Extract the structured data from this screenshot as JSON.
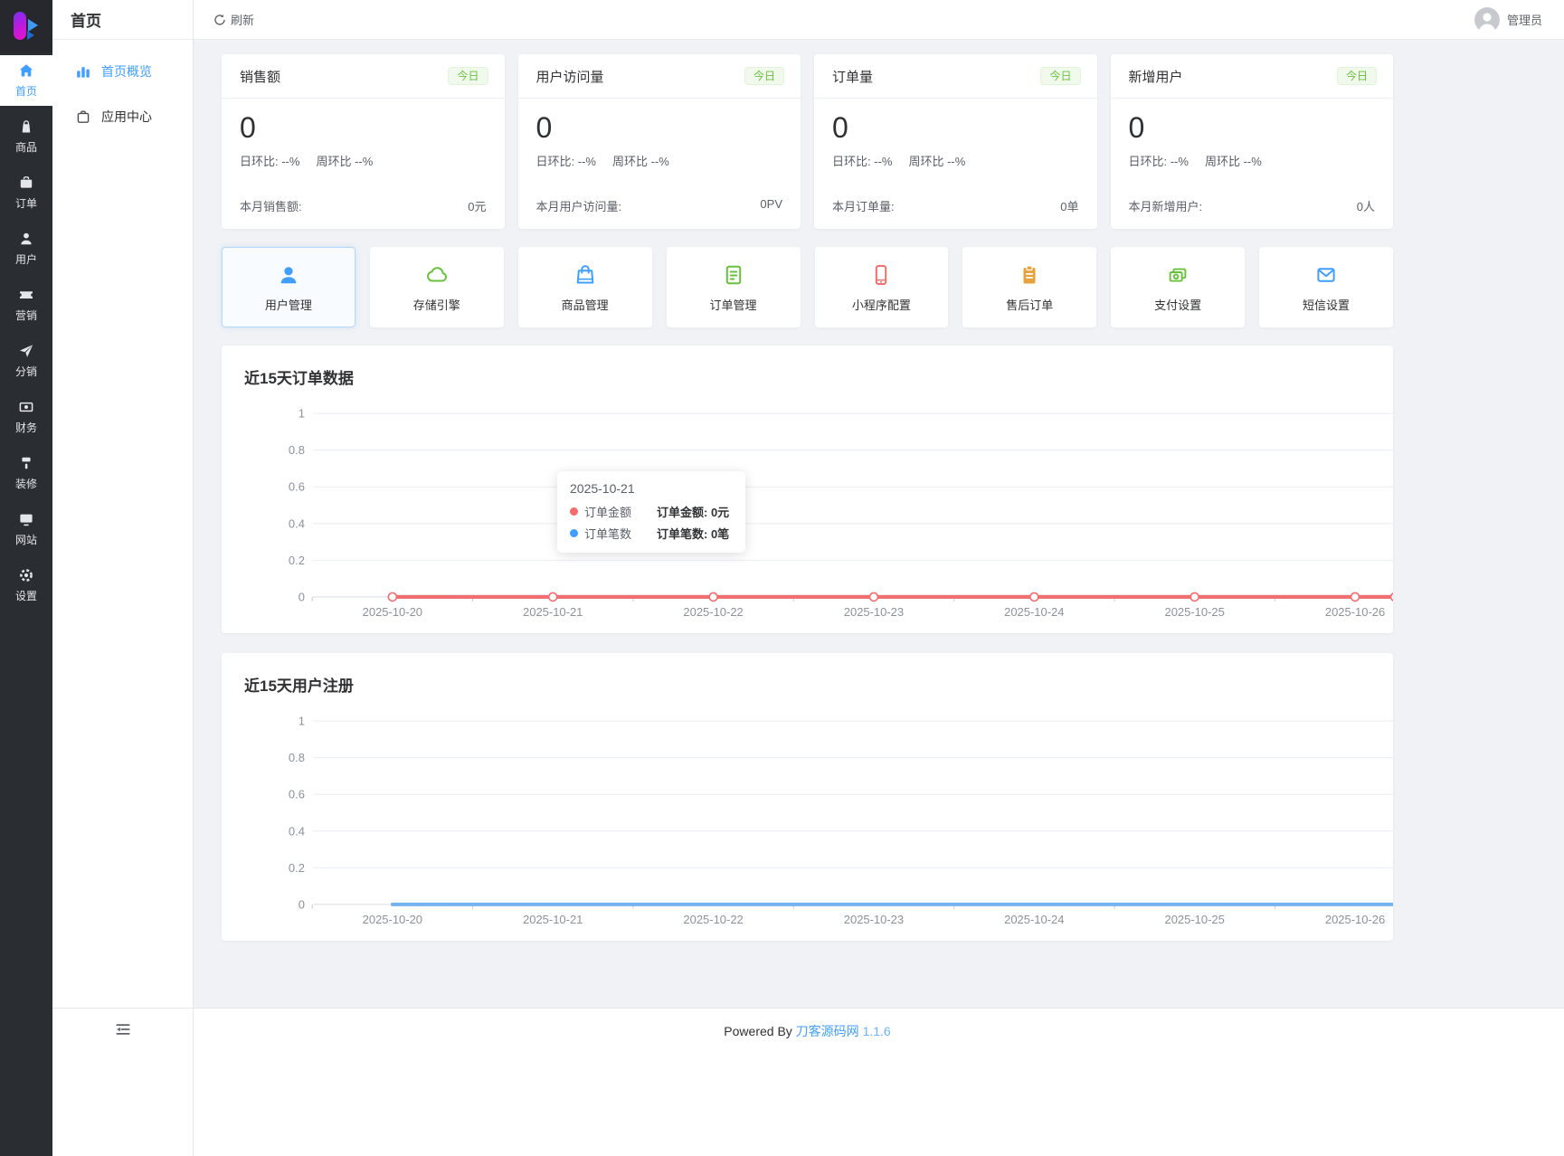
{
  "theme": {
    "accent": "#409eff",
    "success": "#67c23a",
    "danger": "#f56c6c",
    "warning": "#e6a23c"
  },
  "rail": {
    "items": [
      {
        "label": "首页",
        "active": true
      },
      {
        "label": "商品",
        "active": false
      },
      {
        "label": "订单",
        "active": false
      },
      {
        "label": "用户",
        "active": false
      },
      {
        "label": "营销",
        "active": false
      },
      {
        "label": "分销",
        "active": false
      },
      {
        "label": "财务",
        "active": false
      },
      {
        "label": "装修",
        "active": false
      },
      {
        "label": "网站",
        "active": false
      },
      {
        "label": "设置",
        "active": false
      }
    ]
  },
  "sidebar": {
    "title": "首页",
    "items": [
      {
        "label": "首页概览",
        "active": true
      },
      {
        "label": "应用中心",
        "active": false
      }
    ]
  },
  "header": {
    "refresh_label": "刷新",
    "user_name": "管理员"
  },
  "stats": {
    "cards": [
      {
        "title": "销售额",
        "badge": "今日",
        "value": "0",
        "day_ratio": "日环比: --%",
        "week_ratio": "周环比 --%",
        "footer_label": "本月销售额:",
        "footer_value": "0元"
      },
      {
        "title": "用户访问量",
        "badge": "今日",
        "value": "0",
        "day_ratio": "日环比: --%",
        "week_ratio": "周环比 --%",
        "footer_label": "本月用户访问量:",
        "footer_value": "0PV"
      },
      {
        "title": "订单量",
        "badge": "今日",
        "value": "0",
        "day_ratio": "日环比: --%",
        "week_ratio": "周环比 --%",
        "footer_label": "本月订单量:",
        "footer_value": "0单"
      },
      {
        "title": "新增用户",
        "badge": "今日",
        "value": "0",
        "day_ratio": "日环比: --%",
        "week_ratio": "周环比 --%",
        "footer_label": "本月新增用户:",
        "footer_value": "0人"
      }
    ]
  },
  "quick_links": [
    {
      "label": "用户管理",
      "color": "#409eff",
      "active": true
    },
    {
      "label": "存储引擎",
      "color": "#67c23a",
      "active": false
    },
    {
      "label": "商品管理",
      "color": "#409eff",
      "active": false
    },
    {
      "label": "订单管理",
      "color": "#67c23a",
      "active": false
    },
    {
      "label": "小程序配置",
      "color": "#f56c6c",
      "active": false
    },
    {
      "label": "售后订单",
      "color": "#e6a23c",
      "active": false
    },
    {
      "label": "支付设置",
      "color": "#67c23a",
      "active": false
    },
    {
      "label": "短信设置",
      "color": "#409eff",
      "active": false
    }
  ],
  "chart_data": [
    {
      "type": "line",
      "title": "近15天订单数据",
      "x": [
        "2025-10-20",
        "2025-10-21",
        "2025-10-22",
        "2025-10-23",
        "2025-10-24",
        "2025-10-25",
        "2025-10-26"
      ],
      "series": [
        {
          "name": "订单金额",
          "color": "#f56c6c",
          "unit": "元",
          "values": [
            0,
            0,
            0,
            0,
            0,
            0,
            0
          ]
        },
        {
          "name": "订单笔数",
          "color": "#409eff",
          "unit": "笔",
          "values": [
            0,
            0,
            0,
            0,
            0,
            0,
            0
          ]
        }
      ],
      "ylim": [
        0,
        1
      ],
      "yticks": [
        1,
        0.8,
        0.6,
        0.4,
        0.2,
        0
      ],
      "grid": true,
      "markers": true,
      "legend": "none",
      "tooltip": {
        "date": "2025-10-21",
        "rows": [
          {
            "color": "#f56c6c",
            "name": "订单金额",
            "text": "订单金额: 0元"
          },
          {
            "color": "#409eff",
            "name": "订单笔数",
            "text": "订单笔数: 0笔"
          }
        ]
      }
    },
    {
      "type": "line",
      "title": "近15天用户注册",
      "x": [
        "2025-10-20",
        "2025-10-21",
        "2025-10-22",
        "2025-10-23",
        "2025-10-24",
        "2025-10-25",
        "2025-10-26"
      ],
      "series": [
        {
          "name": "用户注册",
          "color": "#74b2f0",
          "unit": "",
          "values": [
            0,
            0,
            0,
            0,
            0,
            0,
            0
          ]
        }
      ],
      "ylim": [
        0,
        1
      ],
      "yticks": [
        1,
        0.8,
        0.6,
        0.4,
        0.2,
        0
      ],
      "grid": true,
      "markers": false,
      "legend": "none"
    }
  ],
  "footer": {
    "powered_by": "Powered By",
    "site": "刀客源码网",
    "version": "1.1.6"
  }
}
